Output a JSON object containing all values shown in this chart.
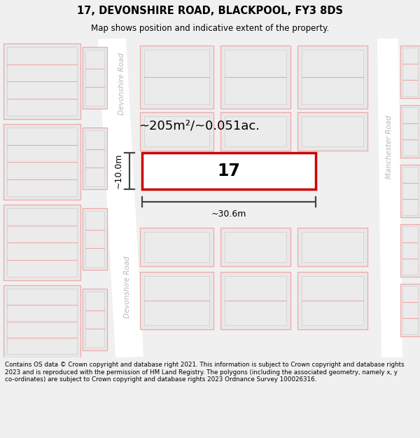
{
  "title_line1": "17, DEVONSHIRE ROAD, BLACKPOOL, FY3 8DS",
  "title_line2": "Map shows position and indicative extent of the property.",
  "footer_text": "Contains OS data © Crown copyright and database right 2021. This information is subject to Crown copyright and database rights 2023 and is reproduced with the permission of HM Land Registry. The polygons (including the associated geometry, namely x, y co-ordinates) are subject to Crown copyright and database rights 2023 Ordnance Survey 100026316.",
  "area_label": "~205m²/~0.051ac.",
  "width_label": "~30.6m",
  "height_label": "~10.0m",
  "plot_number": "17",
  "bg_color": "#f0f0f0",
  "map_bg": "#ffffff",
  "road_color": "#ffffff",
  "building_fill": "#e8e8e8",
  "building_inner_fill": "#e8e8e8",
  "plot_fill": "#ffffff",
  "plot_edge": "#cc0000",
  "road_label_color": "#b8b8b8",
  "dim_line_color": "#444444",
  "pink_line": "#f0a8a8",
  "gray_line": "#c8c8c8",
  "title_fontsize": 10.5,
  "subtitle_fontsize": 8.5,
  "footer_fontsize": 6.3
}
